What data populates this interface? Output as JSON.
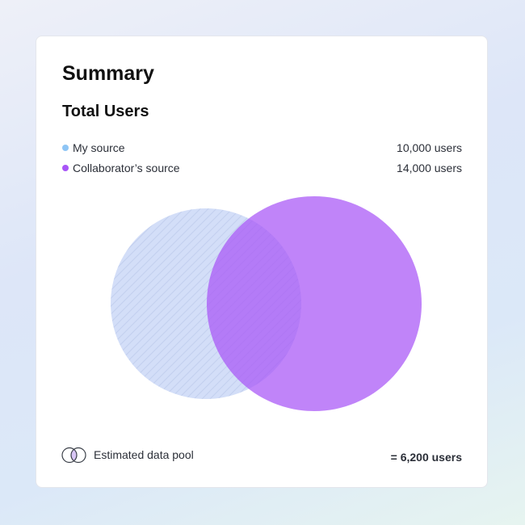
{
  "card": {
    "title": "Summary",
    "subtitle": "Total Users"
  },
  "legend": [
    {
      "label": "My source",
      "value": "10,000 users",
      "color": "#8ec5f5"
    },
    {
      "label": "Collaborator’s source",
      "value": "14,000 users",
      "color": "#a855f7"
    }
  ],
  "venn": {
    "sets": [
      {
        "label": "My source",
        "users": 10000,
        "fill": "#d3def8",
        "pattern": "diagonal-hatch"
      },
      {
        "label": "Collaborator’s source",
        "users": 14000,
        "fill": "#b57ffc"
      }
    ],
    "overlap_users": 6200
  },
  "footer": {
    "icon": "venn-overlap-icon",
    "label": "Estimated data pool",
    "value": "= 6,200 users"
  }
}
